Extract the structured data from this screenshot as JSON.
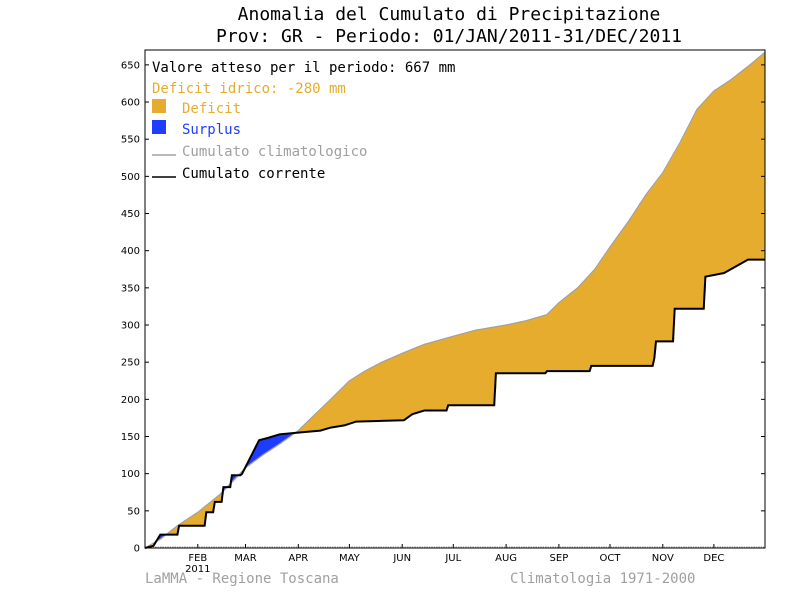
{
  "chart_data": {
    "type": "area",
    "title_line1": "Anomalia del Cumulato di Precipitazione",
    "title_line2": "Prov: GR  - Periodo: 01/JAN/2011-31/DEC/2011",
    "ylim": [
      0,
      670
    ],
    "y_ticks": [
      "0",
      "50",
      "100",
      "150",
      "200",
      "250",
      "300",
      "350",
      "400",
      "450",
      "500",
      "550",
      "600",
      "650"
    ],
    "x_ticks": [
      {
        "label": "FEB",
        "day": 32
      },
      {
        "label": "MAR",
        "day": 60
      },
      {
        "label": "APR",
        "day": 91
      },
      {
        "label": "MAY",
        "day": 121
      },
      {
        "label": "JUN",
        "day": 152
      },
      {
        "label": "JUL",
        "day": 182
      },
      {
        "label": "AUG",
        "day": 213
      },
      {
        "label": "SEP",
        "day": 244
      },
      {
        "label": "OCT",
        "day": 274
      },
      {
        "label": "NOV",
        "day": 305
      },
      {
        "label": "DEC",
        "day": 335
      }
    ],
    "x_year": "2011",
    "xlim_days": [
      1,
      365
    ],
    "legend": {
      "expected": "Valore atteso per il periodo: 667 mm",
      "deficit_text": "Deficit idrico: -280 mm",
      "deficit": "Deficit",
      "surplus": "Surplus",
      "climatological": "Cumulato climatologico",
      "current": "Cumulato corrente"
    },
    "colors": {
      "deficit": "#e6ac2e",
      "surplus": "#1f3cff",
      "climatological": "#a0a0a0",
      "current": "#000000"
    },
    "series": [
      {
        "name": "Cumulato climatologico",
        "points": [
          [
            1,
            0
          ],
          [
            10,
            12
          ],
          [
            20,
            30
          ],
          [
            32,
            48
          ],
          [
            45,
            72
          ],
          [
            60,
            108
          ],
          [
            70,
            125
          ],
          [
            80,
            140
          ],
          [
            91,
            158
          ],
          [
            100,
            178
          ],
          [
            110,
            200
          ],
          [
            121,
            225
          ],
          [
            130,
            238
          ],
          [
            140,
            250
          ],
          [
            152,
            262
          ],
          [
            165,
            274
          ],
          [
            182,
            285
          ],
          [
            195,
            293
          ],
          [
            213,
            300
          ],
          [
            225,
            306
          ],
          [
            237,
            314
          ],
          [
            244,
            330
          ],
          [
            255,
            350
          ],
          [
            265,
            375
          ],
          [
            274,
            405
          ],
          [
            285,
            440
          ],
          [
            295,
            475
          ],
          [
            305,
            505
          ],
          [
            315,
            545
          ],
          [
            325,
            590
          ],
          [
            335,
            615
          ],
          [
            345,
            630
          ],
          [
            355,
            648
          ],
          [
            365,
            667
          ]
        ]
      },
      {
        "name": "Cumulato corrente",
        "points": [
          [
            1,
            0
          ],
          [
            6,
            3
          ],
          [
            10,
            18
          ],
          [
            20,
            18
          ],
          [
            21,
            30
          ],
          [
            36,
            30
          ],
          [
            37,
            48
          ],
          [
            41,
            48
          ],
          [
            42,
            62
          ],
          [
            46,
            62
          ],
          [
            47,
            82
          ],
          [
            51,
            82
          ],
          [
            52,
            98
          ],
          [
            57,
            98
          ],
          [
            58,
            100
          ],
          [
            68,
            145
          ],
          [
            73,
            148
          ],
          [
            80,
            153
          ],
          [
            90,
            155
          ],
          [
            104,
            158
          ],
          [
            110,
            162
          ],
          [
            118,
            165
          ],
          [
            125,
            170
          ],
          [
            153,
            172
          ],
          [
            158,
            180
          ],
          [
            165,
            185
          ],
          [
            178,
            185
          ],
          [
            179,
            192
          ],
          [
            206,
            192
          ],
          [
            207,
            235
          ],
          [
            236,
            235
          ],
          [
            237,
            238
          ],
          [
            262,
            238
          ],
          [
            263,
            245
          ],
          [
            299,
            245
          ],
          [
            300,
            255
          ],
          [
            301,
            278
          ],
          [
            311,
            278
          ],
          [
            312,
            322
          ],
          [
            329,
            322
          ],
          [
            330,
            365
          ],
          [
            341,
            370
          ],
          [
            355,
            388
          ],
          [
            365,
            388
          ]
        ]
      }
    ]
  },
  "footer": {
    "left": "LaMMA - Regione Toscana",
    "right": "Climatologia 1971-2000"
  }
}
